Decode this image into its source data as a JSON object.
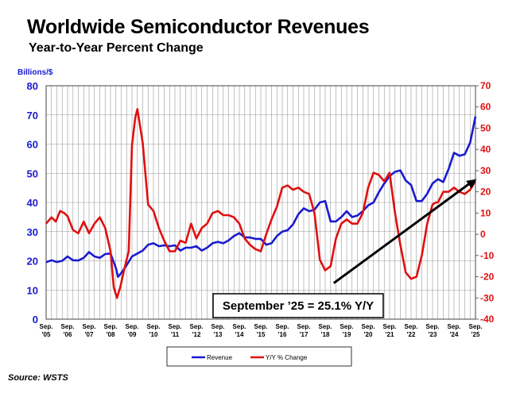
{
  "header": {
    "title": "Worldwide Semiconductor Revenues",
    "subtitle": "Year-to-Year Percent Change",
    "left_axis_units": "Billions/$"
  },
  "source": "Source: WSTS",
  "annotation": "September ’25 = 25.1% Y/Y",
  "colors": {
    "revenue": "#1a1ad0",
    "yoy": "#e01010",
    "grid": "#999999"
  },
  "chart_data": {
    "type": "line",
    "title": "Worldwide Semiconductor Revenues",
    "subtitle": "Year-to-Year Percent Change",
    "left_axis": {
      "label": "Billions/$",
      "range": [
        0,
        80
      ],
      "ticks": [
        0,
        10,
        20,
        30,
        40,
        50,
        60,
        70,
        80
      ]
    },
    "right_axis": {
      "label": "",
      "range": [
        -40,
        70
      ],
      "ticks": [
        -40,
        -30,
        -20,
        -10,
        0,
        10,
        20,
        30,
        40,
        50,
        60,
        70
      ]
    },
    "x_range": [
      2005.75,
      2025.75
    ],
    "x_ticks": [
      {
        "pos": 2005.75,
        "top": "Sep.",
        "bottom": "'05"
      },
      {
        "pos": 2006.75,
        "top": "Sep.",
        "bottom": "'06"
      },
      {
        "pos": 2007.75,
        "top": "Sep.",
        "bottom": "'07"
      },
      {
        "pos": 2008.75,
        "top": "Sep.",
        "bottom": "'08"
      },
      {
        "pos": 2009.75,
        "top": "Sep.",
        "bottom": "'09"
      },
      {
        "pos": 2010.75,
        "top": "Sep.",
        "bottom": "'10"
      },
      {
        "pos": 2011.75,
        "top": "Sep.",
        "bottom": "'11"
      },
      {
        "pos": 2012.75,
        "top": "Sep.",
        "bottom": "'12"
      },
      {
        "pos": 2013.75,
        "top": "Sep.",
        "bottom": "'13"
      },
      {
        "pos": 2014.75,
        "top": "Sep.",
        "bottom": "'14"
      },
      {
        "pos": 2015.75,
        "top": "Sep.",
        "bottom": "'15"
      },
      {
        "pos": 2016.75,
        "top": "Sep.",
        "bottom": "'16"
      },
      {
        "pos": 2017.75,
        "top": "Sep.",
        "bottom": "'17"
      },
      {
        "pos": 2018.75,
        "top": "Sep.",
        "bottom": "'18"
      },
      {
        "pos": 2019.75,
        "top": "Sep.",
        "bottom": "'19"
      },
      {
        "pos": 2020.75,
        "top": "Sep.",
        "bottom": "'20"
      },
      {
        "pos": 2021.75,
        "top": "Sep.",
        "bottom": "'21"
      },
      {
        "pos": 2022.75,
        "top": "Sep.",
        "bottom": "'22"
      },
      {
        "pos": 2023.75,
        "top": "Sep.",
        "bottom": "'23"
      },
      {
        "pos": 2024.75,
        "top": "Sep.",
        "bottom": "'24"
      },
      {
        "pos": 2025.75,
        "top": "Sep.",
        "bottom": "'25"
      }
    ],
    "grid": true,
    "legend_position": "bottom",
    "series": [
      {
        "name": "Revenue",
        "axis": "left",
        "points": [
          [
            2005.75,
            19.5
          ],
          [
            2006.0,
            20.2
          ],
          [
            2006.25,
            19.6
          ],
          [
            2006.5,
            20.0
          ],
          [
            2006.75,
            21.5
          ],
          [
            2007.0,
            20.2
          ],
          [
            2007.25,
            20.1
          ],
          [
            2007.5,
            21.0
          ],
          [
            2007.75,
            23.0
          ],
          [
            2008.0,
            21.5
          ],
          [
            2008.25,
            21.0
          ],
          [
            2008.5,
            22.3
          ],
          [
            2008.75,
            22.5
          ],
          [
            2009.0,
            17.5
          ],
          [
            2009.1,
            14.5
          ],
          [
            2009.25,
            15.8
          ],
          [
            2009.5,
            18.5
          ],
          [
            2009.75,
            21.5
          ],
          [
            2010.0,
            22.5
          ],
          [
            2010.25,
            23.5
          ],
          [
            2010.5,
            25.5
          ],
          [
            2010.75,
            26.0
          ],
          [
            2011.0,
            25.0
          ],
          [
            2011.25,
            25.3
          ],
          [
            2011.5,
            25.0
          ],
          [
            2011.75,
            25.3
          ],
          [
            2012.0,
            23.5
          ],
          [
            2012.25,
            24.5
          ],
          [
            2012.5,
            24.5
          ],
          [
            2012.75,
            25.0
          ],
          [
            2013.0,
            23.5
          ],
          [
            2013.25,
            24.5
          ],
          [
            2013.5,
            26.0
          ],
          [
            2013.75,
            26.5
          ],
          [
            2014.0,
            26.0
          ],
          [
            2014.25,
            27.0
          ],
          [
            2014.5,
            28.5
          ],
          [
            2014.75,
            29.5
          ],
          [
            2015.0,
            28.0
          ],
          [
            2015.25,
            28.0
          ],
          [
            2015.5,
            27.5
          ],
          [
            2015.75,
            27.5
          ],
          [
            2016.0,
            25.5
          ],
          [
            2016.25,
            26.0
          ],
          [
            2016.5,
            28.5
          ],
          [
            2016.75,
            30.0
          ],
          [
            2017.0,
            30.5
          ],
          [
            2017.25,
            32.5
          ],
          [
            2017.5,
            36.0
          ],
          [
            2017.75,
            38.0
          ],
          [
            2018.0,
            37.0
          ],
          [
            2018.25,
            37.5
          ],
          [
            2018.5,
            40.0
          ],
          [
            2018.75,
            40.5
          ],
          [
            2019.0,
            33.5
          ],
          [
            2019.25,
            33.5
          ],
          [
            2019.5,
            35.0
          ],
          [
            2019.75,
            37.0
          ],
          [
            2020.0,
            35.0
          ],
          [
            2020.25,
            35.5
          ],
          [
            2020.5,
            37.0
          ],
          [
            2020.75,
            39.0
          ],
          [
            2021.0,
            40.0
          ],
          [
            2021.25,
            43.5
          ],
          [
            2021.5,
            46.5
          ],
          [
            2021.75,
            49.0
          ],
          [
            2022.0,
            50.5
          ],
          [
            2022.25,
            51.0
          ],
          [
            2022.5,
            47.5
          ],
          [
            2022.75,
            46.0
          ],
          [
            2023.0,
            40.5
          ],
          [
            2023.25,
            40.5
          ],
          [
            2023.5,
            43.0
          ],
          [
            2023.75,
            46.5
          ],
          [
            2024.0,
            48.0
          ],
          [
            2024.25,
            47.0
          ],
          [
            2024.5,
            51.5
          ],
          [
            2024.75,
            57.0
          ],
          [
            2025.0,
            56.0
          ],
          [
            2025.25,
            56.5
          ],
          [
            2025.5,
            60.5
          ],
          [
            2025.75,
            69.5
          ]
        ]
      },
      {
        "name": "Y/Y % Change",
        "axis": "right",
        "points": [
          [
            2005.75,
            5.0
          ],
          [
            2006.0,
            8.0
          ],
          [
            2006.2,
            6.0
          ],
          [
            2006.4,
            11.0
          ],
          [
            2006.6,
            10.0
          ],
          [
            2006.75,
            8.5
          ],
          [
            2007.0,
            2.0
          ],
          [
            2007.25,
            0.5
          ],
          [
            2007.5,
            6.0
          ],
          [
            2007.75,
            0.5
          ],
          [
            2008.0,
            5.0
          ],
          [
            2008.25,
            8.0
          ],
          [
            2008.5,
            3.0
          ],
          [
            2008.75,
            -8.0
          ],
          [
            2008.9,
            -25.0
          ],
          [
            2009.05,
            -30.0
          ],
          [
            2009.2,
            -25.0
          ],
          [
            2009.4,
            -16.0
          ],
          [
            2009.6,
            -8.0
          ],
          [
            2009.75,
            42.0
          ],
          [
            2009.9,
            55.0
          ],
          [
            2010.0,
            59.0
          ],
          [
            2010.25,
            43.0
          ],
          [
            2010.5,
            14.0
          ],
          [
            2010.75,
            11.0
          ],
          [
            2011.0,
            3.0
          ],
          [
            2011.25,
            -3.0
          ],
          [
            2011.5,
            -8.0
          ],
          [
            2011.75,
            -8.0
          ],
          [
            2012.0,
            -3.0
          ],
          [
            2012.25,
            -4.0
          ],
          [
            2012.5,
            5.0
          ],
          [
            2012.75,
            -2.0
          ],
          [
            2013.0,
            3.0
          ],
          [
            2013.25,
            5.0
          ],
          [
            2013.5,
            10.0
          ],
          [
            2013.75,
            11.0
          ],
          [
            2014.0,
            9.0
          ],
          [
            2014.25,
            9.0
          ],
          [
            2014.5,
            8.0
          ],
          [
            2014.75,
            5.0
          ],
          [
            2015.0,
            -2.0
          ],
          [
            2015.25,
            -5.0
          ],
          [
            2015.5,
            -7.0
          ],
          [
            2015.75,
            -8.0
          ],
          [
            2016.0,
            0.0
          ],
          [
            2016.25,
            7.0
          ],
          [
            2016.5,
            13.0
          ],
          [
            2016.75,
            22.0
          ],
          [
            2017.0,
            23.0
          ],
          [
            2017.25,
            21.0
          ],
          [
            2017.5,
            22.0
          ],
          [
            2017.75,
            20.0
          ],
          [
            2018.0,
            19.0
          ],
          [
            2018.25,
            10.0
          ],
          [
            2018.5,
            -12.0
          ],
          [
            2018.75,
            -17.0
          ],
          [
            2019.0,
            -15.0
          ],
          [
            2019.25,
            -2.0
          ],
          [
            2019.5,
            5.0
          ],
          [
            2019.75,
            7.0
          ],
          [
            2020.0,
            5.0
          ],
          [
            2020.25,
            5.0
          ],
          [
            2020.5,
            10.0
          ],
          [
            2020.75,
            22.0
          ],
          [
            2021.0,
            29.0
          ],
          [
            2021.25,
            28.0
          ],
          [
            2021.5,
            25.0
          ],
          [
            2021.75,
            29.0
          ],
          [
            2022.0,
            10.0
          ],
          [
            2022.25,
            -5.0
          ],
          [
            2022.5,
            -18.0
          ],
          [
            2022.75,
            -21.0
          ],
          [
            2023.0,
            -20.0
          ],
          [
            2023.25,
            -10.0
          ],
          [
            2023.5,
            5.0
          ],
          [
            2023.75,
            14.0
          ],
          [
            2023.9,
            15.0
          ],
          [
            2024.0,
            15.0
          ],
          [
            2024.25,
            20.0
          ],
          [
            2024.5,
            20.0
          ],
          [
            2024.75,
            22.0
          ],
          [
            2025.0,
            20.0
          ],
          [
            2025.25,
            19.0
          ],
          [
            2025.5,
            21.0
          ],
          [
            2025.75,
            25.1
          ]
        ]
      }
    ],
    "trend_arrow": {
      "from": [
        2019.15,
        -23.0
      ],
      "to": [
        2025.8,
        26.0
      ],
      "axis": "right"
    }
  },
  "legend": {
    "items": [
      {
        "label": "Revenue",
        "color": "#1a1ad0"
      },
      {
        "label": "Y/Y % Change",
        "color": "#e01010"
      }
    ]
  }
}
